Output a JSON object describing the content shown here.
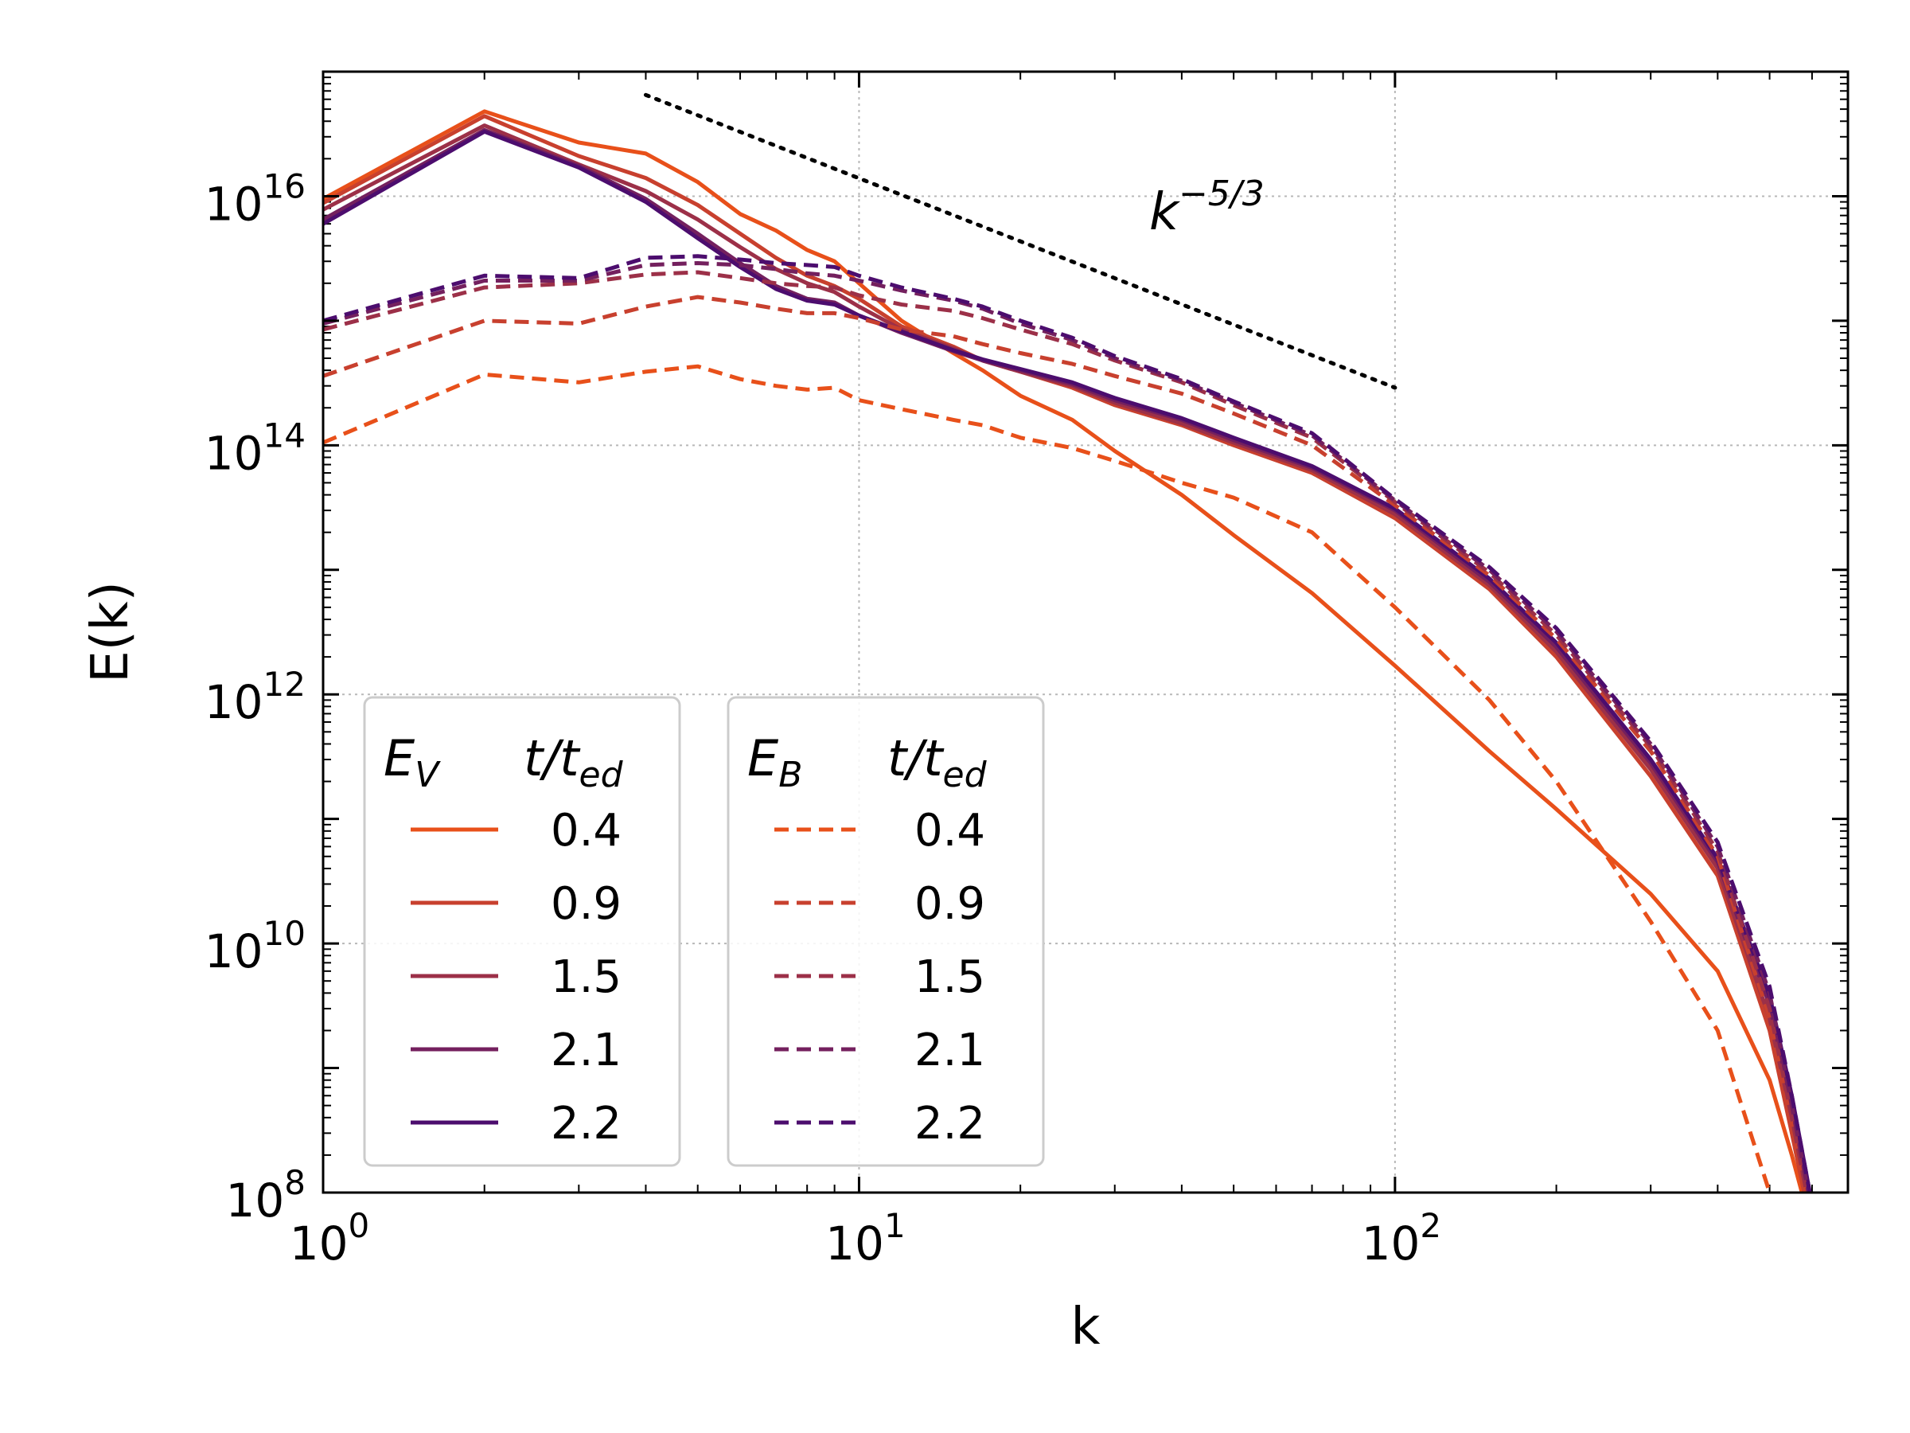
{
  "chart_data": {
    "type": "line",
    "scale": {
      "x": "log",
      "y": "log"
    },
    "xlabel": "k",
    "ylabel": "E(k)",
    "xlim": [
      1,
      700
    ],
    "ylim": [
      100000000.0,
      1e+17
    ],
    "grid": true,
    "x_ticks": [
      {
        "value": 1,
        "base": "10",
        "exp": "0"
      },
      {
        "value": 10,
        "base": "10",
        "exp": "1"
      },
      {
        "value": 100,
        "base": "10",
        "exp": "2"
      }
    ],
    "y_ticks": [
      {
        "value": 100000000.0,
        "base": "10",
        "exp": "8"
      },
      {
        "value": 10000000000.0,
        "base": "10",
        "exp": "10"
      },
      {
        "value": 1000000000000.0,
        "base": "10",
        "exp": "12"
      },
      {
        "value": 100000000000000.0,
        "base": "10",
        "exp": "14"
      },
      {
        "value": 1e+16,
        "base": "10",
        "exp": "16"
      }
    ],
    "reference_line": {
      "label_base": "k",
      "label_exp": "−5/3",
      "slope": -1.6667,
      "x": [
        4,
        100
      ],
      "y": [
        6.5e+16,
        290000000000000.0
      ],
      "style": "dotted",
      "color": "#000000"
    },
    "legends": [
      {
        "title_main": "E",
        "title_sub": "V",
        "title_t": "t/t",
        "title_t_sub": "ed",
        "style": "solid",
        "position": "lower-left"
      },
      {
        "title_main": "E",
        "title_sub": "B",
        "title_t": "t/t",
        "title_t_sub": "ed",
        "style": "dashed",
        "position": "lower-left"
      }
    ],
    "x": [
      1,
      2,
      3,
      4,
      5,
      6,
      7,
      8,
      9,
      10,
      12,
      15,
      17,
      20,
      25,
      30,
      40,
      50,
      70,
      100,
      150,
      200,
      300,
      400,
      500,
      550,
      600
    ],
    "series": [
      {
        "name": "0.4",
        "group": "E_V",
        "style": "solid",
        "color": "#e8501a",
        "values": [
          9500000000000000.0,
          4.8e+16,
          2.7e+16,
          2.2e+16,
          1.3e+16,
          7200000000000000.0,
          5300000000000000.0,
          3700000000000000.0,
          3000000000000000.0,
          2000000000000000.0,
          1000000000000000.0,
          550000000000000.0,
          400000000000000.0,
          250000000000000.0,
          160000000000000.0,
          90000000000000.0,
          40000000000000.0,
          19000000000000.0,
          6500000000000.0,
          1700000000000.0,
          350000000000.0,
          120000000000.0,
          25000000000.0,
          6000000000.0,
          800000000.0,
          200000000.0,
          50000000.0
        ]
      },
      {
        "name": "0.9",
        "group": "E_V",
        "style": "solid",
        "color": "#c8402e",
        "values": [
          8800000000000000.0,
          4.4e+16,
          2.1e+16,
          1.4e+16,
          8500000000000000.0,
          5000000000000000.0,
          3200000000000000.0,
          2300000000000000.0,
          1900000000000000.0,
          1500000000000000.0,
          900000000000000.0,
          620000000000000.0,
          480000000000000.0,
          390000000000000.0,
          290000000000000.0,
          210000000000000.0,
          145000000000000.0,
          100000000000000.0,
          60000000000000.0,
          26000000000000.0,
          7000000000000.0,
          2000000000000.0,
          220000000000.0,
          35000000000.0,
          2000000000.0,
          300000000.0,
          50000000.0
        ]
      },
      {
        "name": "1.5",
        "group": "E_V",
        "style": "solid",
        "color": "#9c3048",
        "values": [
          7800000000000000.0,
          3.7e+16,
          1.8e+16,
          1.1e+16,
          6500000000000000.0,
          3900000000000000.0,
          2600000000000000.0,
          2000000000000000.0,
          1700000000000000.0,
          1300000000000000.0,
          850000000000000.0,
          600000000000000.0,
          480000000000000.0,
          390000000000000.0,
          300000000000000.0,
          220000000000000.0,
          150000000000000.0,
          105000000000000.0,
          63000000000000.0,
          28000000000000.0,
          7500000000000.0,
          2200000000000.0,
          250000000000.0,
          40000000000.0,
          2500000000.0,
          400000000.0,
          60000000.0
        ]
      },
      {
        "name": "2.1",
        "group": "E_V",
        "style": "solid",
        "color": "#74205e",
        "values": [
          6500000000000000.0,
          3.4e+16,
          1.75e+16,
          9500000000000000.0,
          5000000000000000.0,
          2900000000000000.0,
          1900000000000000.0,
          1500000000000000.0,
          1400000000000000.0,
          1100000000000000.0,
          800000000000000.0,
          570000000000000.0,
          480000000000000.0,
          400000000000000.0,
          310000000000000.0,
          230000000000000.0,
          160000000000000.0,
          110000000000000.0,
          66000000000000.0,
          30000000000000.0,
          8000000000000.0,
          2400000000000.0,
          280000000000.0,
          45000000000.0,
          3200000000.0,
          500000000.0,
          70000000.0
        ]
      },
      {
        "name": "2.2",
        "group": "E_V",
        "style": "solid",
        "color": "#4c0d6e",
        "values": [
          6000000000000000.0,
          3.3e+16,
          1.7e+16,
          9000000000000000.0,
          4600000000000000.0,
          2700000000000000.0,
          1800000000000000.0,
          1450000000000000.0,
          1350000000000000.0,
          1100000000000000.0,
          820000000000000.0,
          580000000000000.0,
          490000000000000.0,
          410000000000000.0,
          320000000000000.0,
          240000000000000.0,
          165000000000000.0,
          115000000000000.0,
          68000000000000.0,
          31000000000000.0,
          8500000000000.0,
          2600000000000.0,
          300000000000.0,
          48000000000.0,
          3800000000.0,
          600000000.0,
          80000000.0
        ]
      },
      {
        "name": "0.4",
        "group": "E_B",
        "style": "dashed",
        "color": "#e8501a",
        "values": [
          105000000000000.0,
          370000000000000.0,
          320000000000000.0,
          390000000000000.0,
          430000000000000.0,
          340000000000000.0,
          300000000000000.0,
          280000000000000.0,
          290000000000000.0,
          230000000000000.0,
          195000000000000.0,
          160000000000000.0,
          145000000000000.0,
          115000000000000.0,
          95000000000000.0,
          75000000000000.0,
          50000000000000.0,
          38000000000000.0,
          20000000000000.0,
          5000000000000.0,
          900000000000.0,
          200000000000.0,
          15000000000.0,
          2000000000.0,
          100000000.0,
          30000000.0,
          10000000.0
        ]
      },
      {
        "name": "0.9",
        "group": "E_B",
        "style": "dashed",
        "color": "#c8402e",
        "values": [
          360000000000000.0,
          1000000000000000.0,
          950000000000000.0,
          1300000000000000.0,
          1550000000000000.0,
          1400000000000000.0,
          1250000000000000.0,
          1150000000000000.0,
          1150000000000000.0,
          1050000000000000.0,
          850000000000000.0,
          750000000000000.0,
          650000000000000.0,
          550000000000000.0,
          450000000000000.0,
          360000000000000.0,
          260000000000000.0,
          180000000000000.0,
          100000000000000.0,
          33000000000000.0,
          9000000000000.0,
          2800000000000.0,
          350000000000.0,
          50000000000.0,
          2500000000.0,
          350000000.0,
          50000000.0
        ]
      },
      {
        "name": "1.5",
        "group": "E_B",
        "style": "dashed",
        "color": "#9c3048",
        "values": [
          850000000000000.0,
          1850000000000000.0,
          2000000000000000.0,
          2350000000000000.0,
          2450000000000000.0,
          2200000000000000.0,
          2000000000000000.0,
          1900000000000000.0,
          1850000000000000.0,
          1600000000000000.0,
          1350000000000000.0,
          1200000000000000.0,
          1050000000000000.0,
          850000000000000.0,
          650000000000000.0,
          480000000000000.0,
          320000000000000.0,
          210000000000000.0,
          115000000000000.0,
          35000000000000.0,
          9500000000000.0,
          3000000000000.0,
          380000000000.0,
          55000000000.0,
          3000000000.0,
          400000000.0,
          60000000.0
        ]
      },
      {
        "name": "2.1",
        "group": "E_B",
        "style": "dashed",
        "color": "#74205e",
        "values": [
          950000000000000.0,
          2100000000000000.0,
          2100000000000000.0,
          2800000000000000.0,
          2900000000000000.0,
          2800000000000000.0,
          2600000000000000.0,
          2400000000000000.0,
          2300000000000000.0,
          2100000000000000.0,
          1750000000000000.0,
          1450000000000000.0,
          1250000000000000.0,
          950000000000000.0,
          700000000000000.0,
          500000000000000.0,
          330000000000000.0,
          220000000000000.0,
          120000000000000.0,
          36000000000000.0,
          10000000000000.0,
          3200000000000.0,
          400000000000.0,
          60000000000.0,
          4000000000.0,
          500000000.0,
          70000000.0
        ]
      },
      {
        "name": "2.2",
        "group": "E_B",
        "style": "dashed",
        "color": "#4c0d6e",
        "values": [
          1000000000000000.0,
          2300000000000000.0,
          2200000000000000.0,
          3200000000000000.0,
          3300000000000000.0,
          3100000000000000.0,
          2900000000000000.0,
          2800000000000000.0,
          2700000000000000.0,
          2300000000000000.0,
          1850000000000000.0,
          1500000000000000.0,
          1300000000000000.0,
          1000000000000000.0,
          730000000000000.0,
          520000000000000.0,
          340000000000000.0,
          225000000000000.0,
          125000000000000.0,
          37000000000000.0,
          10500000000000.0,
          3400000000000.0,
          420000000000.0,
          65000000000.0,
          4500000000.0,
          600000000.0,
          80000000.0
        ]
      }
    ]
  }
}
